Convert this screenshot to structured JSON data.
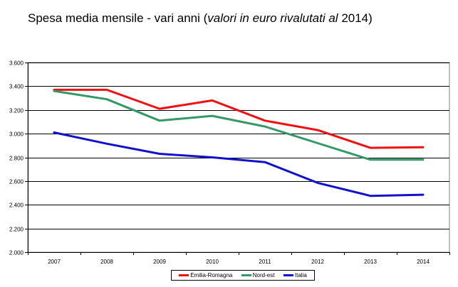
{
  "title": {
    "prefix": "Spesa media mensile - vari anni (",
    "italic": "valori in euro rivalutati al",
    "suffix": " 2014)"
  },
  "chart_data": {
    "type": "line",
    "title": "Spesa media mensile - vari anni (valori in euro rivalutati al 2014)",
    "xlabel": "",
    "ylabel": "",
    "ylim": [
      2000,
      3600
    ],
    "yticks": [
      2000,
      2200,
      2400,
      2600,
      2800,
      3000,
      3200,
      3400,
      3600
    ],
    "ytick_labels": [
      "2.000",
      "2.200",
      "2.400",
      "2.600",
      "2.800",
      "3.000",
      "3.200",
      "3.400",
      "3.600"
    ],
    "categories": [
      "2007",
      "2008",
      "2009",
      "2010",
      "2011",
      "2012",
      "2013",
      "2014"
    ],
    "grid": "horizontal",
    "legend_position": "bottom",
    "series": [
      {
        "name": "Emilia-Romagna",
        "color": "#ee1111",
        "values": [
          3370,
          3370,
          3210,
          3280,
          3110,
          3030,
          2880,
          2885
        ]
      },
      {
        "name": "Nord-est",
        "color": "#339966",
        "values": [
          3360,
          3290,
          3110,
          3150,
          3060,
          2920,
          2780,
          2780
        ]
      },
      {
        "name": "Italia",
        "color": "#1111cc",
        "values": [
          3010,
          2915,
          2830,
          2800,
          2760,
          2585,
          2475,
          2485
        ]
      }
    ]
  }
}
